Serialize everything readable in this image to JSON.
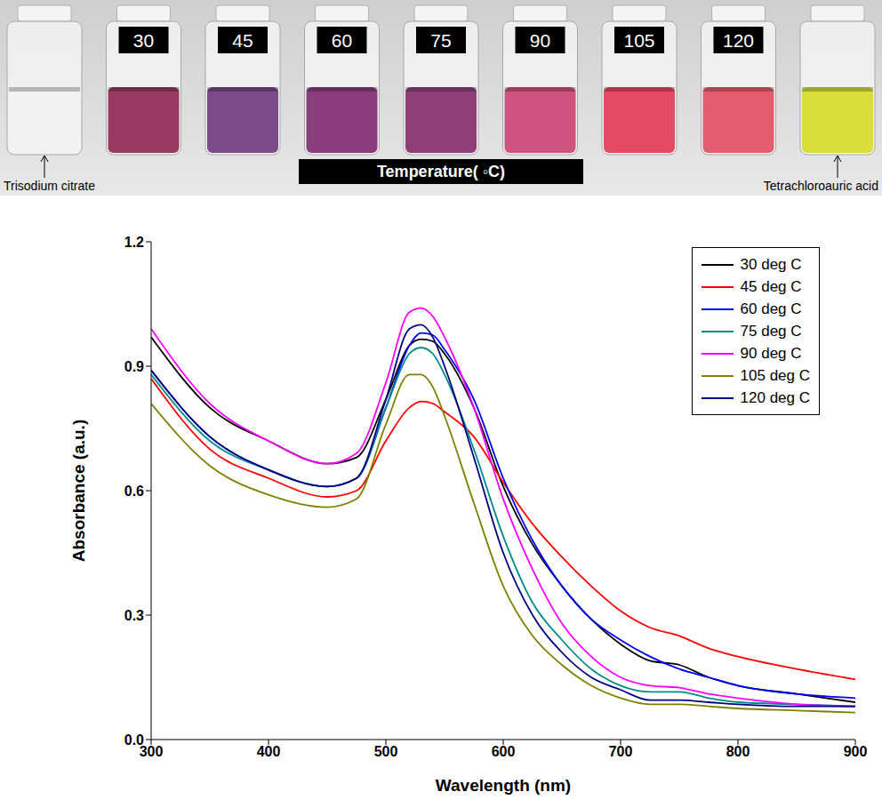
{
  "photo": {
    "temperatures": [
      30,
      45,
      60,
      75,
      90,
      105,
      120
    ],
    "colors": [
      "#9a3a62",
      "#7b4a88",
      "#8a3f7c",
      "#8e3f78",
      "#cf527f",
      "#e44a63",
      "#e25e6e"
    ],
    "caption": "Temperature( ◦C)",
    "left_vial": "Trisodium citrate",
    "right_vial": "Tetrachloroauric acid"
  },
  "chart_data": {
    "type": "line",
    "x_label": "Wavelength (nm)",
    "y_label": "Absorbance (a.u.)",
    "xlim": [
      300,
      900
    ],
    "xticks": [
      300,
      400,
      500,
      600,
      700,
      800,
      900
    ],
    "ylim": [
      0,
      1.2
    ],
    "yticks": [
      {
        "value": 0,
        "label": "0.0"
      },
      0.3,
      0.6,
      0.9,
      1.2
    ],
    "grid": false,
    "legend": "top-right",
    "x": [
      300,
      350,
      400,
      450,
      475,
      500,
      520,
      530,
      540,
      550,
      575,
      600,
      625,
      650,
      675,
      700,
      725,
      750,
      775,
      800,
      850,
      900
    ],
    "series": [
      {
        "name": "30 deg C",
        "color": "#000000",
        "values": [
          0.97,
          0.8,
          0.72,
          0.665,
          0.68,
          0.82,
          0.95,
          0.965,
          0.96,
          0.93,
          0.8,
          0.61,
          0.47,
          0.37,
          0.29,
          0.23,
          0.19,
          0.18,
          0.15,
          0.13,
          0.11,
          0.09
        ]
      },
      {
        "name": "45 deg C",
        "color": "#ff0000",
        "values": [
          0.87,
          0.7,
          0.63,
          0.585,
          0.6,
          0.72,
          0.8,
          0.815,
          0.81,
          0.79,
          0.73,
          0.62,
          0.52,
          0.44,
          0.37,
          0.31,
          0.27,
          0.25,
          0.22,
          0.2,
          0.17,
          0.145
        ]
      },
      {
        "name": "60 deg C",
        "color": "#0000ff",
        "values": [
          0.89,
          0.73,
          0.65,
          0.61,
          0.63,
          0.8,
          0.95,
          0.98,
          0.975,
          0.94,
          0.82,
          0.63,
          0.48,
          0.37,
          0.29,
          0.24,
          0.2,
          0.17,
          0.15,
          0.13,
          0.11,
          0.1
        ]
      },
      {
        "name": "75 deg C",
        "color": "#008b8b",
        "values": [
          0.88,
          0.72,
          0.65,
          0.61,
          0.63,
          0.8,
          0.93,
          0.945,
          0.93,
          0.88,
          0.7,
          0.49,
          0.33,
          0.24,
          0.17,
          0.13,
          0.115,
          0.115,
          0.1,
          0.09,
          0.085,
          0.08
        ]
      },
      {
        "name": "90 deg C",
        "color": "#ff00ff",
        "values": [
          0.99,
          0.81,
          0.72,
          0.665,
          0.69,
          0.86,
          1.03,
          1.04,
          1.02,
          0.97,
          0.8,
          0.58,
          0.41,
          0.28,
          0.2,
          0.15,
          0.13,
          0.125,
          0.11,
          0.1,
          0.085,
          0.08
        ]
      },
      {
        "name": "105 deg C",
        "color": "#808000",
        "values": [
          0.81,
          0.66,
          0.59,
          0.56,
          0.58,
          0.76,
          0.88,
          0.88,
          0.85,
          0.78,
          0.57,
          0.37,
          0.25,
          0.18,
          0.13,
          0.1,
          0.085,
          0.085,
          0.08,
          0.075,
          0.07,
          0.065
        ]
      },
      {
        "name": "120 deg C",
        "color": "#000080",
        "values": [
          0.89,
          0.73,
          0.65,
          0.61,
          0.63,
          0.82,
          0.99,
          1.0,
          0.97,
          0.9,
          0.68,
          0.45,
          0.3,
          0.21,
          0.15,
          0.12,
          0.095,
          0.095,
          0.09,
          0.085,
          0.08,
          0.08
        ]
      }
    ]
  }
}
